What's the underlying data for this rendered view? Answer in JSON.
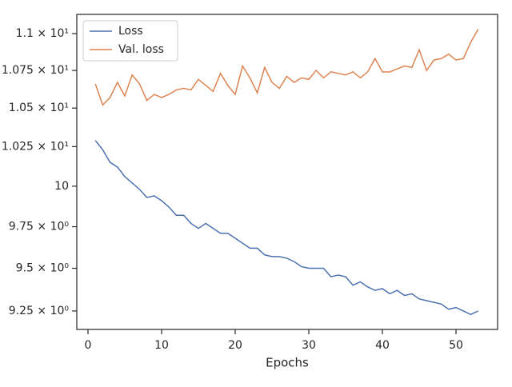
{
  "chart_data": {
    "type": "line",
    "xlabel": "Epochs",
    "x": [
      1,
      2,
      3,
      4,
      5,
      6,
      7,
      8,
      9,
      10,
      11,
      12,
      13,
      14,
      15,
      16,
      17,
      18,
      19,
      20,
      21,
      22,
      23,
      24,
      25,
      26,
      27,
      28,
      29,
      30,
      31,
      32,
      33,
      34,
      35,
      36,
      37,
      38,
      39,
      40,
      41,
      42,
      43,
      44,
      45,
      46,
      47,
      48,
      49,
      50,
      51,
      52,
      53
    ],
    "series": [
      {
        "name": "Loss",
        "color": "#4c72b0",
        "values": [
          10.29,
          10.23,
          10.15,
          10.12,
          10.06,
          10.02,
          9.98,
          9.93,
          9.94,
          9.91,
          9.87,
          9.82,
          9.82,
          9.77,
          9.74,
          9.77,
          9.74,
          9.71,
          9.71,
          9.68,
          9.65,
          9.62,
          9.62,
          9.58,
          9.57,
          9.57,
          9.56,
          9.54,
          9.51,
          9.5,
          9.5,
          9.5,
          9.45,
          9.46,
          9.45,
          9.4,
          9.42,
          9.39,
          9.37,
          9.38,
          9.35,
          9.37,
          9.34,
          9.35,
          9.32,
          9.31,
          9.3,
          9.29,
          9.26,
          9.27,
          9.25,
          9.23,
          9.25
        ]
      },
      {
        "name": "Val. loss",
        "color": "#dd8452",
        "values": [
          10.66,
          10.52,
          10.57,
          10.67,
          10.58,
          10.72,
          10.66,
          10.55,
          10.59,
          10.57,
          10.59,
          10.62,
          10.63,
          10.62,
          10.69,
          10.65,
          10.61,
          10.73,
          10.65,
          10.59,
          10.78,
          10.7,
          10.6,
          10.77,
          10.67,
          10.63,
          10.71,
          10.67,
          10.7,
          10.69,
          10.75,
          10.7,
          10.74,
          10.73,
          10.72,
          10.74,
          10.7,
          10.74,
          10.83,
          10.74,
          10.74,
          10.76,
          10.78,
          10.77,
          10.89,
          10.75,
          10.82,
          10.83,
          10.86,
          10.82,
          10.83,
          10.94,
          11.03
        ]
      }
    ],
    "xlim": [
      -1.52,
      55.65
    ],
    "xticks": [
      0,
      10,
      20,
      30,
      40,
      50
    ],
    "ylim": [
      9.144,
      11.133
    ],
    "ylog": true,
    "yticks": [
      {
        "value": 9.25,
        "label": "9.25 × 10⁰"
      },
      {
        "value": 9.5,
        "label": "9.5 × 10⁰"
      },
      {
        "value": 9.75,
        "label": "9.75 × 10⁰"
      },
      10,
      {
        "value": 10.25,
        "label": "1.025 × 10¹"
      },
      {
        "value": 10.5,
        "label": "1.05 × 10¹"
      },
      {
        "value": 10.75,
        "label": "1.075 × 10¹"
      },
      {
        "value": 11,
        "label": "1.1 × 10¹"
      }
    ],
    "grid": false,
    "legend": "upper left"
  }
}
